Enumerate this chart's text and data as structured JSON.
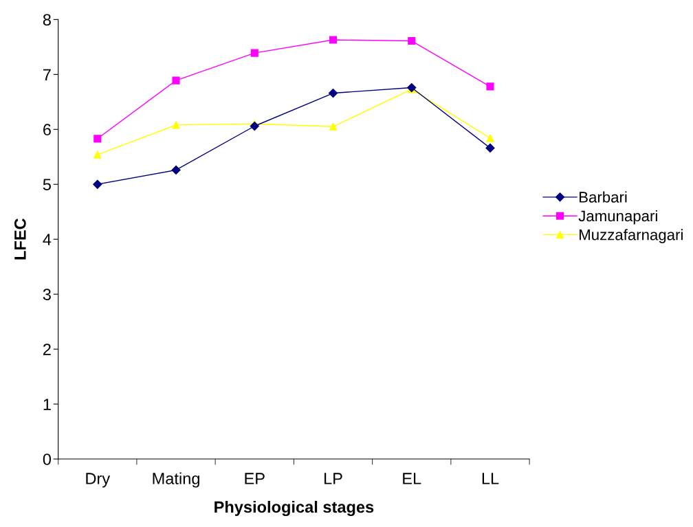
{
  "chart_data": {
    "type": "line",
    "xlabel": "Physiological stages",
    "ylabel": "LFEC",
    "categories": [
      "Dry",
      "Mating",
      "EP",
      "LP",
      "EL",
      "LL"
    ],
    "series": [
      {
        "name": "Barbari",
        "color": "#000080",
        "marker": "diamond",
        "values": [
          5.0,
          5.26,
          6.06,
          6.66,
          6.76,
          5.66
        ]
      },
      {
        "name": "Jamunapari",
        "color": "#ff00ff",
        "marker": "square",
        "values": [
          5.83,
          6.89,
          7.39,
          7.63,
          7.61,
          6.78
        ]
      },
      {
        "name": "Muzzafarnagari",
        "color": "#ffff00",
        "marker": "triangle",
        "values": [
          5.54,
          6.08,
          6.1,
          6.05,
          6.73,
          5.84
        ]
      }
    ],
    "ylim": [
      0,
      8
    ],
    "yticks": [
      0,
      1,
      2,
      3,
      4,
      5,
      6,
      7,
      8
    ],
    "grid": false,
    "legend": "right",
    "line_style": "solid"
  }
}
